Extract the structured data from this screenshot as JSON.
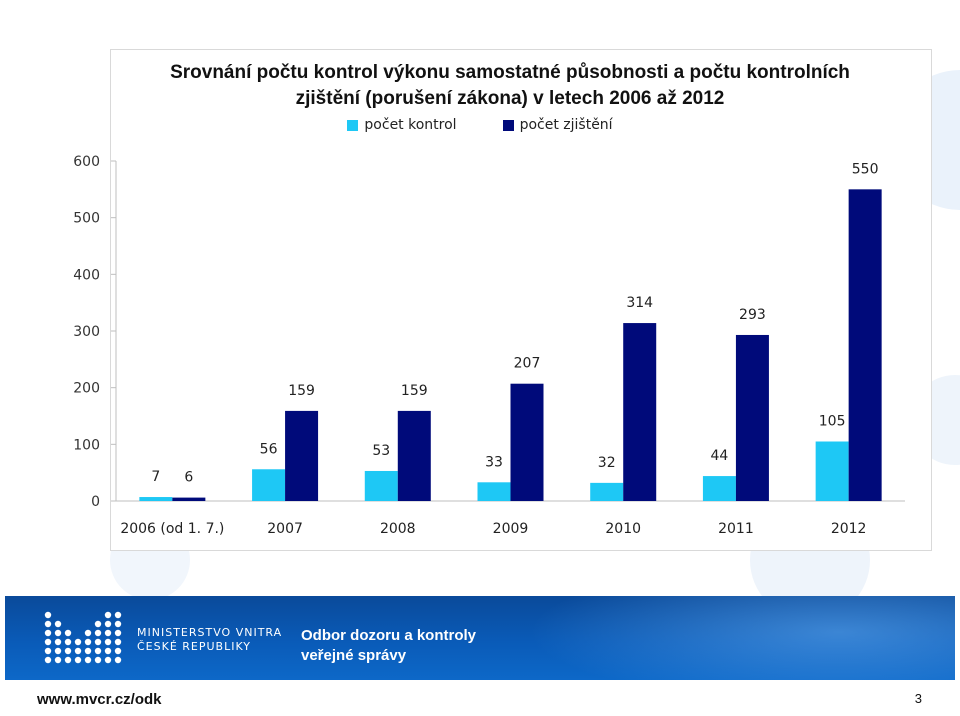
{
  "chart_data": {
    "type": "bar",
    "title": "Srovnání počtu kontrol výkonu samostatné působnosti a počtu kontrolních zjištění  (porušení zákona) v letech 2006 až 2012",
    "title_lines": [
      "Srovnání počtu kontrol výkonu samostatné působnosti a počtu kontrolních",
      "zjištění  (porušení zákona) v letech 2006 až 2012"
    ],
    "categories": [
      "2006 (od 1. 7.)",
      "2007",
      "2008",
      "2009",
      "2010",
      "2011",
      "2012"
    ],
    "series": [
      {
        "name": "počet kontrol",
        "color": "#1ec8f5",
        "values": [
          7,
          56,
          53,
          33,
          32,
          44,
          105
        ]
      },
      {
        "name": "počet zjištění",
        "color": "#000a7a",
        "values": [
          6,
          159,
          159,
          207,
          314,
          293,
          550
        ]
      }
    ],
    "ylim": [
      0,
      600
    ],
    "yticks": [
      0,
      100,
      200,
      300,
      400,
      500,
      600
    ],
    "grid": false,
    "legend": "top"
  },
  "footer": {
    "ministry_line1": "MINISTERSTVO VNITRA",
    "ministry_line2": "ČESKÉ REPUBLIKY",
    "dept_line1": "Odbor dozoru a kontroly",
    "dept_line2": "veřejné správy",
    "url": "www.mvcr.cz/odk",
    "page": "3"
  }
}
